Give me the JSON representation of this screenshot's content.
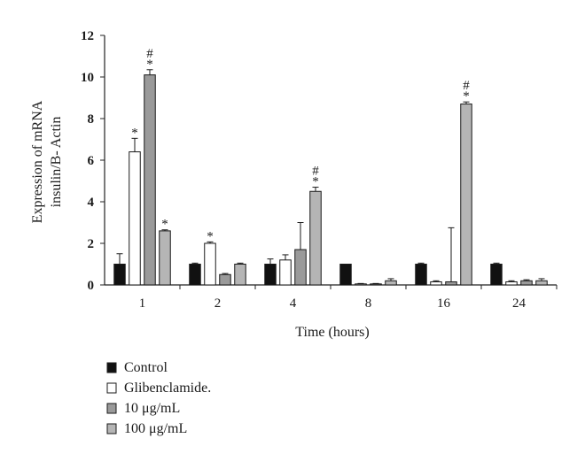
{
  "chart_data": {
    "type": "bar",
    "title": "",
    "xlabel": "Time (hours)",
    "ylabel_lines": [
      "Expression of mRNA",
      "insulin/B- Actin"
    ],
    "categories": [
      "1",
      "2",
      "4",
      "8",
      "16",
      "24"
    ],
    "ylim": [
      0,
      12
    ],
    "yticks": [
      "0",
      "2",
      "4",
      "6",
      "8",
      "10",
      "12"
    ],
    "grid": false,
    "legend_position": "bottom-left",
    "series": [
      {
        "name": "Control",
        "color": "#111111",
        "values": [
          1.0,
          1.0,
          1.0,
          1.0,
          1.0,
          1.0
        ],
        "errors": [
          0.5,
          0.05,
          0.25,
          0.0,
          0.05,
          0.05
        ],
        "marks": [
          "",
          "",
          "",
          "",
          "",
          ""
        ]
      },
      {
        "name": "Glibenclamide.",
        "color": "#ffffff",
        "values": [
          6.4,
          2.0,
          1.2,
          0.05,
          0.15,
          0.15
        ],
        "errors": [
          0.65,
          0.07,
          0.25,
          0.02,
          0.05,
          0.05
        ],
        "marks": [
          "*",
          "*",
          "",
          "",
          "",
          ""
        ]
      },
      {
        "name": "10 μg/mL",
        "color": "#9a9a9a",
        "values": [
          10.1,
          0.5,
          1.7,
          0.05,
          0.15,
          0.2
        ],
        "errors": [
          0.25,
          0.05,
          1.3,
          0.02,
          2.6,
          0.05
        ],
        "marks": [
          "*#",
          "",
          "",
          "",
          "",
          ""
        ]
      },
      {
        "name": "100 μg/mL",
        "color": "#b5b5b5",
        "values": [
          2.6,
          1.0,
          4.5,
          0.2,
          8.7,
          0.2
        ],
        "errors": [
          0.05,
          0.05,
          0.2,
          0.1,
          0.1,
          0.1
        ],
        "marks": [
          "*",
          "",
          "*#",
          "",
          "*#",
          ""
        ]
      }
    ]
  }
}
